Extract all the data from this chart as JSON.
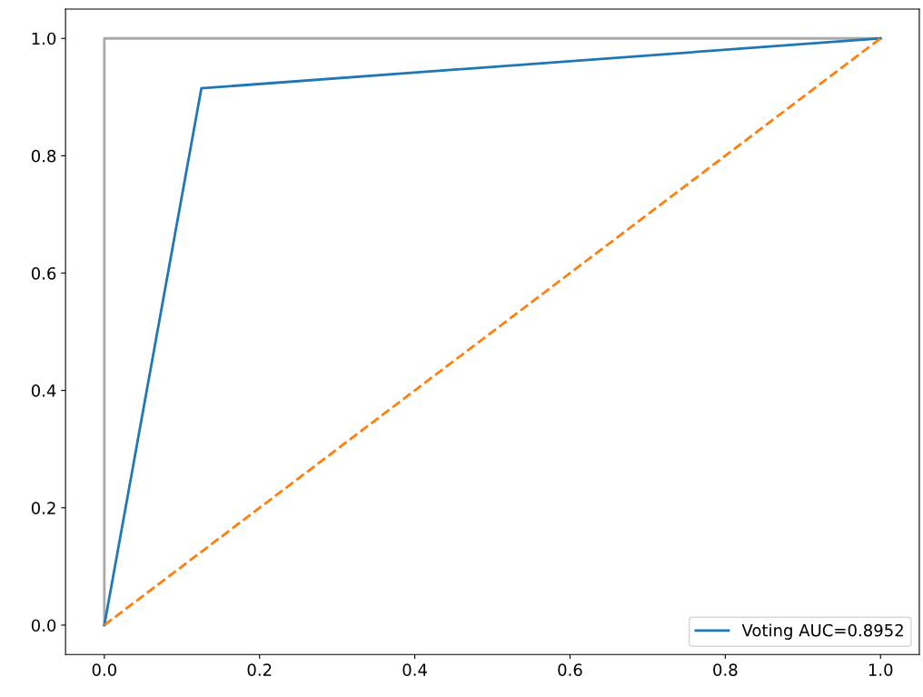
{
  "chart_data": {
    "type": "line",
    "xlim": [
      -0.05,
      1.05
    ],
    "ylim": [
      -0.05,
      1.05
    ],
    "xticks": [
      {
        "value": 0,
        "label": "0.0"
      },
      {
        "value": 0.2,
        "label": "0.2"
      },
      {
        "value": 0.4,
        "label": "0.4"
      },
      {
        "value": 0.6,
        "label": "0.6"
      },
      {
        "value": 0.8,
        "label": "0.8"
      },
      {
        "value": 1,
        "label": "1.0"
      }
    ],
    "yticks": [
      {
        "value": 0,
        "label": "0.0"
      },
      {
        "value": 0.2,
        "label": "0.2"
      },
      {
        "value": 0.4,
        "label": "0.4"
      },
      {
        "value": 0.6,
        "label": "0.6"
      },
      {
        "value": 0.8,
        "label": "0.8"
      },
      {
        "value": 1,
        "label": "1.0"
      }
    ],
    "series": [
      {
        "color": "#a9a9a9",
        "x": [
          0,
          0,
          1
        ],
        "values": [
          0,
          1,
          1
        ],
        "line_style": "solid"
      },
      {
        "name": "Voting AUC=0.8952",
        "color": "#1f77b4",
        "x": [
          0,
          0.125,
          1
        ],
        "values": [
          0,
          0.915,
          1
        ],
        "line_style": "solid"
      },
      {
        "color": "#ff7f0e",
        "x": [
          0,
          1
        ],
        "values": [
          0,
          1
        ],
        "line_style": "dashed"
      }
    ],
    "legend": "bottom right",
    "grid": false
  }
}
